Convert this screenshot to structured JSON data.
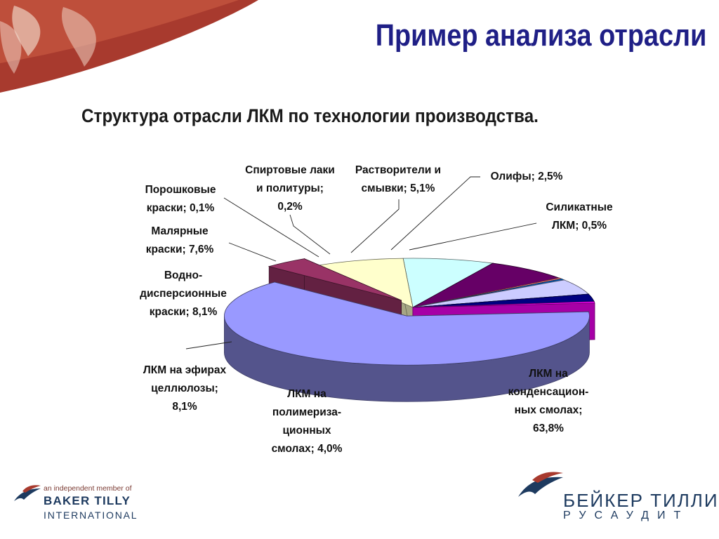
{
  "slide": {
    "title": "Пример анализа отрасли"
  },
  "chart_data": {
    "type": "pie",
    "title": "Структура отрасли ЛКМ по технологии производства.",
    "slices": [
      {
        "label_lines": [
          "ЛКМ на",
          "конденсацион-",
          "ных смолах;",
          "63,8%"
        ],
        "value": 63.8,
        "color": "#9999ff",
        "explode": true
      },
      {
        "label_lines": [
          "ЛКМ на",
          "полимериза-",
          "ционных",
          "смолах; 4,0%"
        ],
        "value": 4.0,
        "color": "#993366",
        "explode": true
      },
      {
        "label_lines": [
          "ЛКМ на эфирах",
          "целлюлозы;",
          "8,1%"
        ],
        "value": 8.1,
        "color": "#ffffcc"
      },
      {
        "label_lines": [
          "Водно-",
          "дисперсионные",
          "краски; 8,1%"
        ],
        "value": 8.1,
        "color": "#ccffff"
      },
      {
        "label_lines": [
          "Малярные",
          "краски; 7,6%"
        ],
        "value": 7.6,
        "color": "#660066"
      },
      {
        "label_lines": [
          "Порошковые",
          "краски; 0,1%"
        ],
        "value": 0.1,
        "color": "#ff8080"
      },
      {
        "label_lines": [
          "Спиртовые лаки",
          "и политуры;",
          "0,2%"
        ],
        "value": 0.2,
        "color": "#0066cc"
      },
      {
        "label_lines": [
          "Растворители и",
          "смывки; 5,1%"
        ],
        "value": 5.1,
        "color": "#ccccff"
      },
      {
        "label_lines": [
          "Олифы; 2,5%"
        ],
        "value": 2.5,
        "color": "#000080"
      },
      {
        "label_lines": [
          "Силикатные",
          "ЛКМ; 0,5%"
        ],
        "value": 0.5,
        "color": "#ff00ff"
      }
    ],
    "legend": "none",
    "label_style": "callout"
  },
  "footer": {
    "member_text": "an independent member of",
    "member_name1": "BAKER TILLY",
    "member_name2": "INTERNATIONAL",
    "brand_name1": "БЕЙКЕР ТИЛЛИ",
    "brand_name2": "РУСАУДИТ"
  }
}
